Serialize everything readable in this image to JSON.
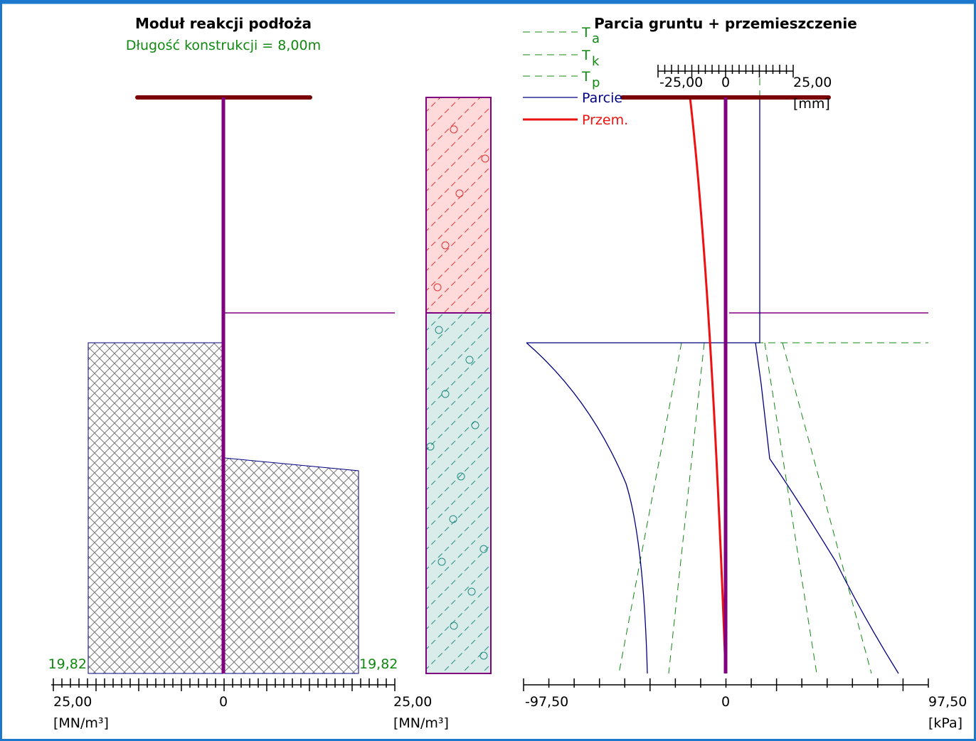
{
  "left_panel": {
    "title": "Moduł reakcji podłoża",
    "subtitle": "Długość konstrukcji = 8,00m",
    "value_labels": [
      "19,82",
      "19,82"
    ],
    "axis": {
      "min_label": "25,00",
      "zero_label": "0",
      "max_label": "25,00",
      "unit": "[MN/m³]"
    }
  },
  "right_panel": {
    "title": "Parcia gruntu + przemieszczenie",
    "legend": [
      {
        "label": "T",
        "sub": "a"
      },
      {
        "label": "T",
        "sub": "k"
      },
      {
        "label": "T",
        "sub": "p"
      },
      {
        "label": "Parcie"
      },
      {
        "label": "Przem."
      }
    ],
    "top_axis": {
      "min_label": "-25,00",
      "zero_label": "0",
      "max_label": "25,00",
      "unit": "[mm]"
    },
    "bottom_axis": {
      "min_label": "-97,50",
      "zero_label": "0",
      "max_label": "97,50",
      "unit": "[kPa]"
    }
  }
}
